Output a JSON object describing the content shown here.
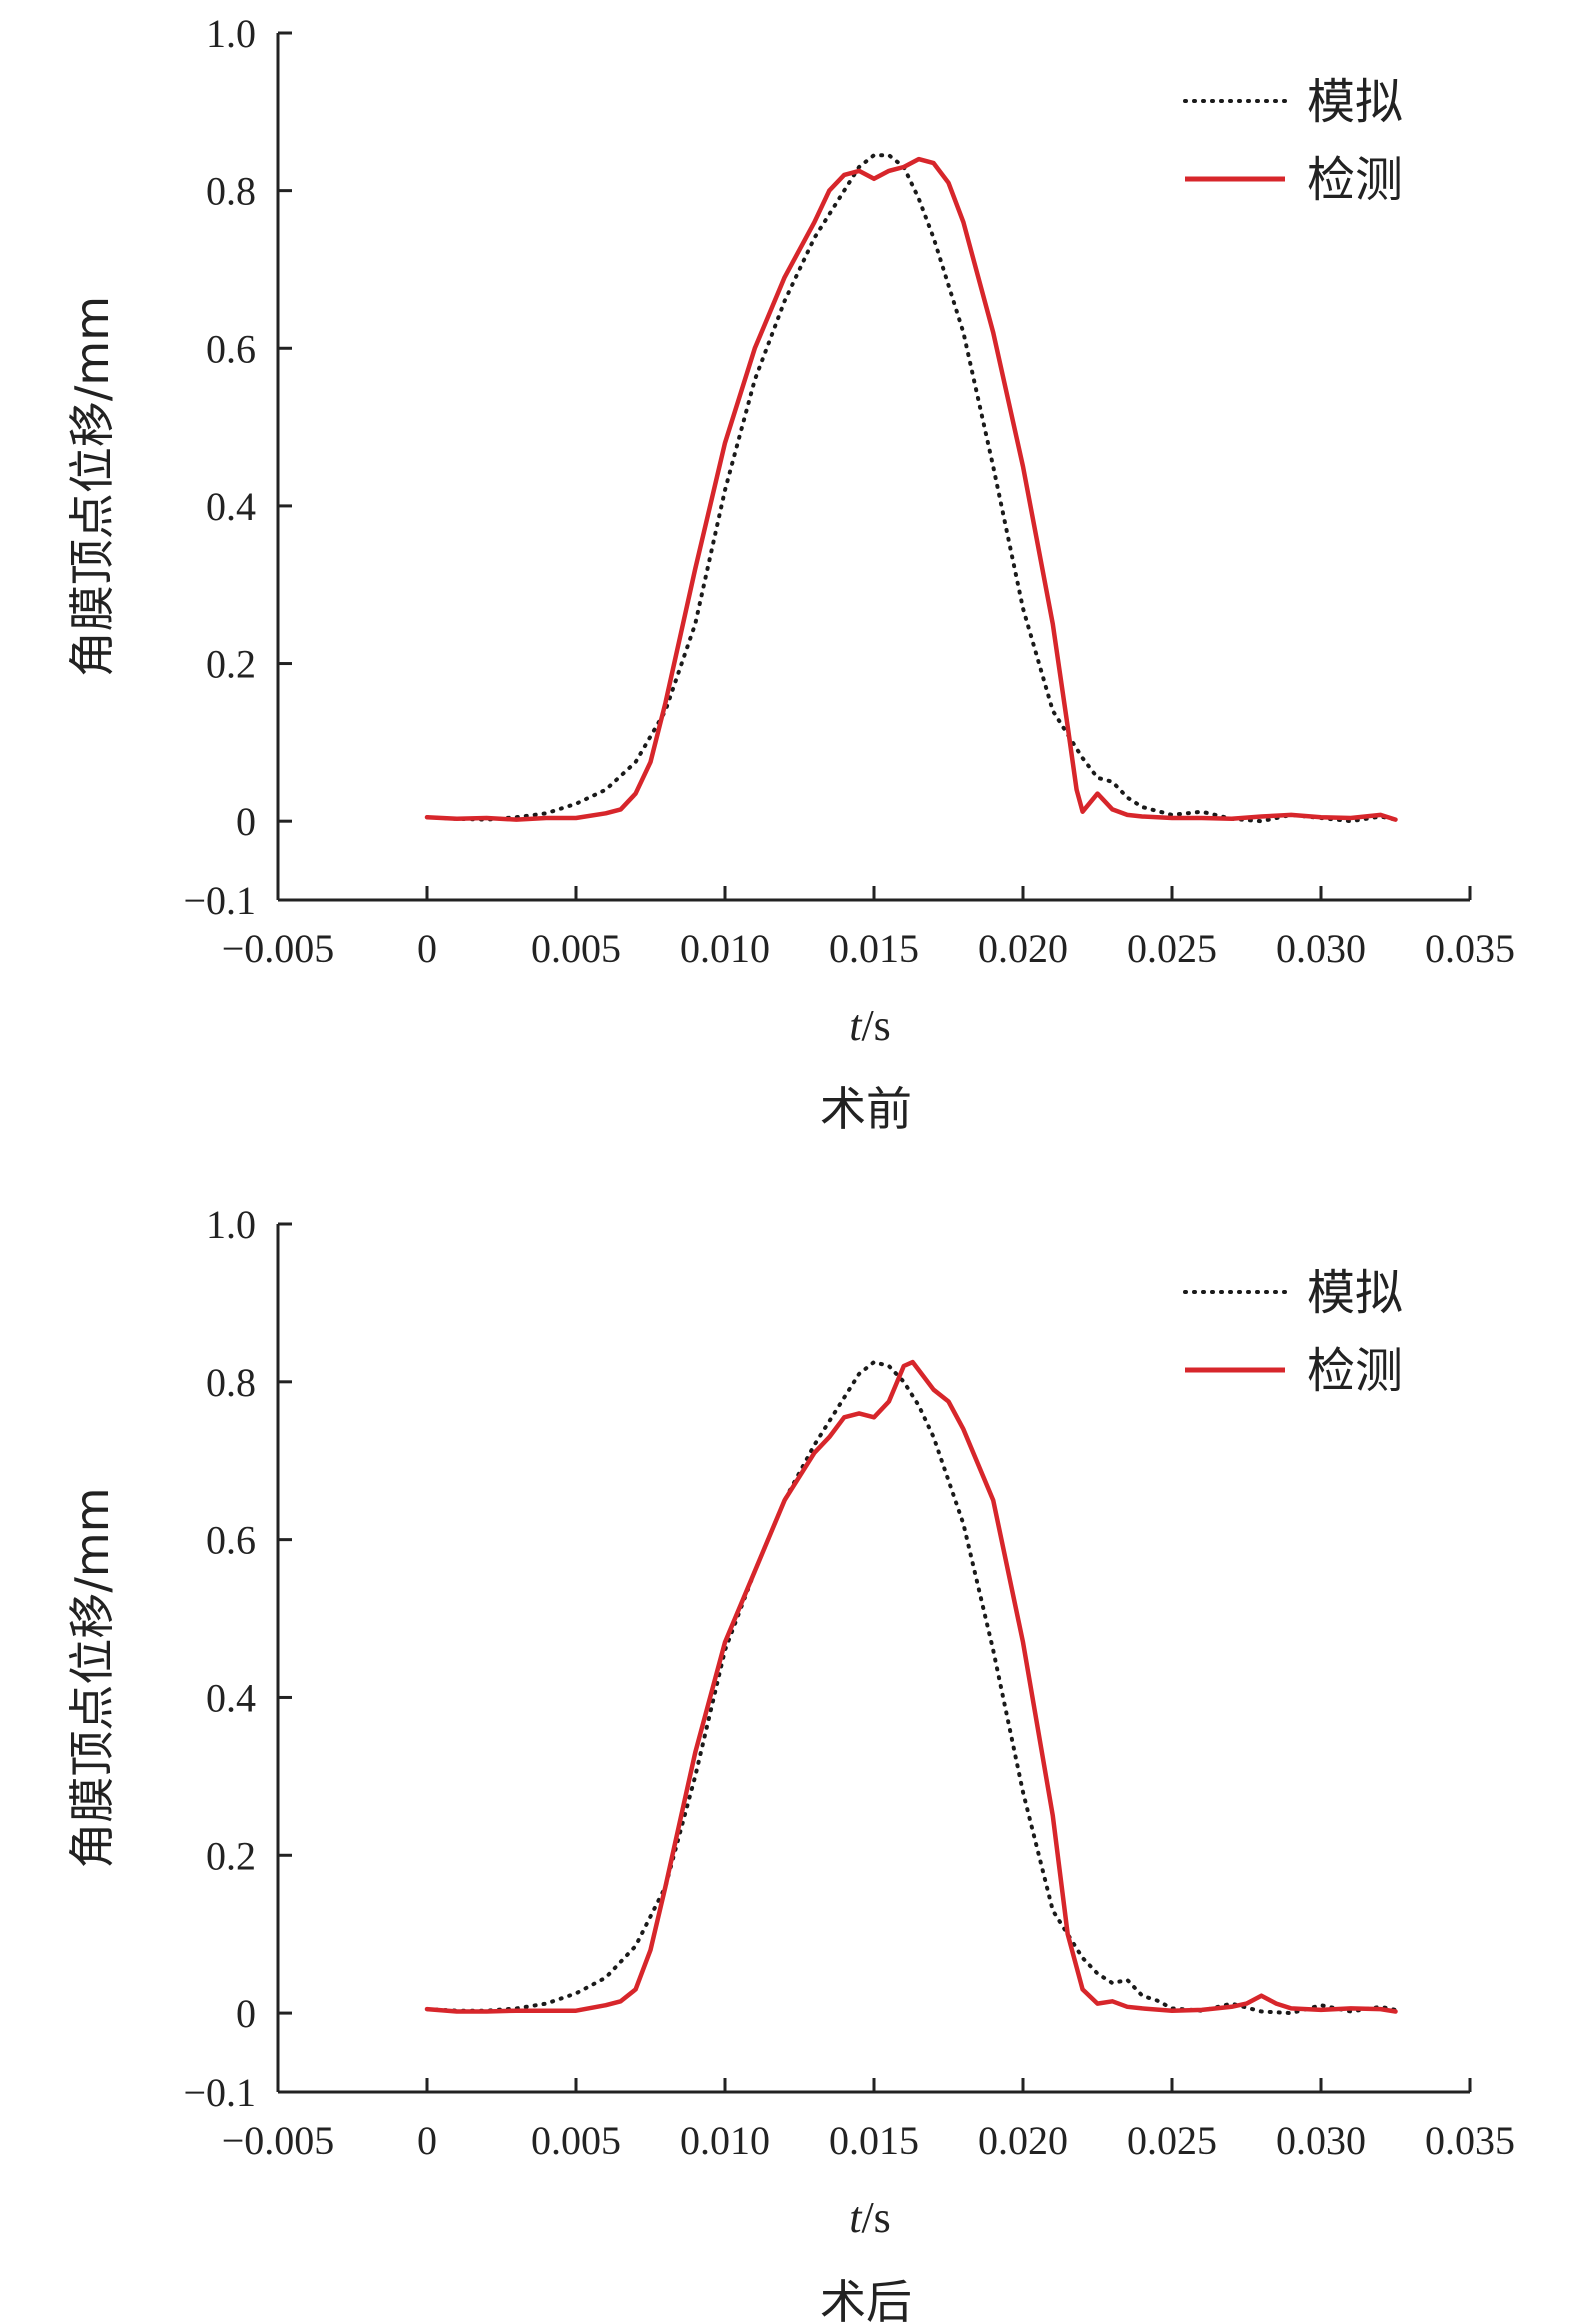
{
  "chart_data": [
    {
      "type": "line",
      "caption": "术前",
      "xlabel": "t/s",
      "ylabel": "角膜顶点位移/mm",
      "xlim": [
        -0.005,
        0.035
      ],
      "ylim": [
        -0.1,
        1.0
      ],
      "xticks": [
        -0.005,
        0,
        0.005,
        0.01,
        0.015,
        0.02,
        0.025,
        0.03,
        0.035
      ],
      "xtick_labels": [
        "−0.005",
        "0",
        "0.005",
        "0.010",
        "0.015",
        "0.020",
        "0.025",
        "0.030",
        "0.035"
      ],
      "yticks": [
        1.0,
        0.8,
        0.6,
        0.4,
        0.2,
        0,
        -0.1
      ],
      "ytick_labels": [
        "1.0",
        "0.8",
        "0.6",
        "0.4",
        "0.2",
        "0",
        "−0.1"
      ],
      "grid": false,
      "legend_position": "top-right",
      "series": [
        {
          "name": "模拟",
          "style": "dotted",
          "color": "#1a1a1a",
          "points": [
            [
              0,
              0.005
            ],
            [
              0.001,
              0.003
            ],
            [
              0.002,
              0.002
            ],
            [
              0.003,
              0.005
            ],
            [
              0.004,
              0.01
            ],
            [
              0.005,
              0.022
            ],
            [
              0.006,
              0.04
            ],
            [
              0.007,
              0.075
            ],
            [
              0.008,
              0.14
            ],
            [
              0.009,
              0.25
            ],
            [
              0.01,
              0.42
            ],
            [
              0.011,
              0.56
            ],
            [
              0.012,
              0.66
            ],
            [
              0.013,
              0.74
            ],
            [
              0.014,
              0.8
            ],
            [
              0.0145,
              0.83
            ],
            [
              0.015,
              0.845
            ],
            [
              0.0155,
              0.845
            ],
            [
              0.016,
              0.83
            ],
            [
              0.0165,
              0.79
            ],
            [
              0.017,
              0.74
            ],
            [
              0.018,
              0.62
            ],
            [
              0.019,
              0.45
            ],
            [
              0.02,
              0.27
            ],
            [
              0.021,
              0.14
            ],
            [
              0.022,
              0.08
            ],
            [
              0.0225,
              0.055
            ],
            [
              0.023,
              0.05
            ],
            [
              0.0235,
              0.03
            ],
            [
              0.024,
              0.018
            ],
            [
              0.025,
              0.008
            ],
            [
              0.026,
              0.012
            ],
            [
              0.027,
              0.003
            ],
            [
              0.028,
              0.0
            ],
            [
              0.029,
              0.008
            ],
            [
              0.03,
              0.004
            ],
            [
              0.031,
              0.0
            ],
            [
              0.032,
              0.006
            ],
            [
              0.0325,
              0.002
            ]
          ]
        },
        {
          "name": "检测",
          "style": "solid",
          "color": "#d7262b",
          "points": [
            [
              0,
              0.005
            ],
            [
              0.001,
              0.003
            ],
            [
              0.002,
              0.004
            ],
            [
              0.003,
              0.002
            ],
            [
              0.004,
              0.004
            ],
            [
              0.005,
              0.004
            ],
            [
              0.006,
              0.01
            ],
            [
              0.0065,
              0.015
            ],
            [
              0.007,
              0.035
            ],
            [
              0.0075,
              0.075
            ],
            [
              0.008,
              0.15
            ],
            [
              0.009,
              0.32
            ],
            [
              0.01,
              0.48
            ],
            [
              0.011,
              0.6
            ],
            [
              0.012,
              0.69
            ],
            [
              0.013,
              0.76
            ],
            [
              0.0135,
              0.8
            ],
            [
              0.014,
              0.82
            ],
            [
              0.0145,
              0.825
            ],
            [
              0.015,
              0.815
            ],
            [
              0.0155,
              0.825
            ],
            [
              0.016,
              0.83
            ],
            [
              0.0165,
              0.84
            ],
            [
              0.017,
              0.835
            ],
            [
              0.0175,
              0.81
            ],
            [
              0.018,
              0.76
            ],
            [
              0.019,
              0.62
            ],
            [
              0.02,
              0.45
            ],
            [
              0.021,
              0.25
            ],
            [
              0.0215,
              0.12
            ],
            [
              0.0218,
              0.04
            ],
            [
              0.022,
              0.012
            ],
            [
              0.0225,
              0.035
            ],
            [
              0.023,
              0.015
            ],
            [
              0.0235,
              0.008
            ],
            [
              0.024,
              0.006
            ],
            [
              0.025,
              0.004
            ],
            [
              0.026,
              0.004
            ],
            [
              0.027,
              0.003
            ],
            [
              0.028,
              0.006
            ],
            [
              0.029,
              0.008
            ],
            [
              0.03,
              0.005
            ],
            [
              0.031,
              0.004
            ],
            [
              0.032,
              0.008
            ],
            [
              0.0325,
              0.002
            ]
          ]
        }
      ]
    },
    {
      "type": "line",
      "caption": "术后",
      "xlabel": "t/s",
      "ylabel": "角膜顶点位移/mm",
      "xlim": [
        -0.005,
        0.035
      ],
      "ylim": [
        -0.1,
        1.0
      ],
      "xticks": [
        -0.005,
        0,
        0.005,
        0.01,
        0.015,
        0.02,
        0.025,
        0.03,
        0.035
      ],
      "xtick_labels": [
        "−0.005",
        "0",
        "0.005",
        "0.010",
        "0.015",
        "0.020",
        "0.025",
        "0.030",
        "0.035"
      ],
      "yticks": [
        1.0,
        0.8,
        0.6,
        0.4,
        0.2,
        0,
        -0.1
      ],
      "ytick_labels": [
        "1.0",
        "0.8",
        "0.6",
        "0.4",
        "0.2",
        "0",
        "−0.1"
      ],
      "grid": false,
      "legend_position": "top-right",
      "series": [
        {
          "name": "模拟",
          "style": "dotted",
          "color": "#1a1a1a",
          "points": [
            [
              0,
              0.005
            ],
            [
              0.001,
              0.003
            ],
            [
              0.002,
              0.003
            ],
            [
              0.003,
              0.006
            ],
            [
              0.004,
              0.012
            ],
            [
              0.005,
              0.025
            ],
            [
              0.006,
              0.045
            ],
            [
              0.007,
              0.085
            ],
            [
              0.008,
              0.16
            ],
            [
              0.009,
              0.3
            ],
            [
              0.01,
              0.46
            ],
            [
              0.011,
              0.56
            ],
            [
              0.012,
              0.65
            ],
            [
              0.013,
              0.72
            ],
            [
              0.014,
              0.78
            ],
            [
              0.0145,
              0.81
            ],
            [
              0.015,
              0.825
            ],
            [
              0.0155,
              0.82
            ],
            [
              0.016,
              0.8
            ],
            [
              0.0165,
              0.77
            ],
            [
              0.017,
              0.73
            ],
            [
              0.018,
              0.62
            ],
            [
              0.019,
              0.46
            ],
            [
              0.02,
              0.28
            ],
            [
              0.021,
              0.13
            ],
            [
              0.022,
              0.07
            ],
            [
              0.0225,
              0.05
            ],
            [
              0.023,
              0.038
            ],
            [
              0.0235,
              0.042
            ],
            [
              0.024,
              0.022
            ],
            [
              0.0245,
              0.016
            ],
            [
              0.025,
              0.006
            ],
            [
              0.026,
              0.003
            ],
            [
              0.027,
              0.012
            ],
            [
              0.028,
              0.002
            ],
            [
              0.029,
              0.0
            ],
            [
              0.03,
              0.01
            ],
            [
              0.031,
              0.002
            ],
            [
              0.032,
              0.008
            ],
            [
              0.0325,
              0.004
            ]
          ]
        },
        {
          "name": "检测",
          "style": "solid",
          "color": "#d7262b",
          "points": [
            [
              0,
              0.005
            ],
            [
              0.001,
              0.002
            ],
            [
              0.002,
              0.002
            ],
            [
              0.003,
              0.003
            ],
            [
              0.004,
              0.003
            ],
            [
              0.005,
              0.003
            ],
            [
              0.006,
              0.01
            ],
            [
              0.0065,
              0.015
            ],
            [
              0.007,
              0.03
            ],
            [
              0.0075,
              0.08
            ],
            [
              0.008,
              0.16
            ],
            [
              0.009,
              0.33
            ],
            [
              0.01,
              0.47
            ],
            [
              0.011,
              0.56
            ],
            [
              0.012,
              0.65
            ],
            [
              0.013,
              0.71
            ],
            [
              0.0135,
              0.73
            ],
            [
              0.014,
              0.755
            ],
            [
              0.0145,
              0.76
            ],
            [
              0.015,
              0.755
            ],
            [
              0.0155,
              0.775
            ],
            [
              0.016,
              0.82
            ],
            [
              0.0163,
              0.825
            ],
            [
              0.0165,
              0.815
            ],
            [
              0.017,
              0.79
            ],
            [
              0.0175,
              0.775
            ],
            [
              0.018,
              0.74
            ],
            [
              0.019,
              0.65
            ],
            [
              0.02,
              0.47
            ],
            [
              0.021,
              0.25
            ],
            [
              0.0215,
              0.1
            ],
            [
              0.022,
              0.03
            ],
            [
              0.0225,
              0.012
            ],
            [
              0.023,
              0.015
            ],
            [
              0.0235,
              0.008
            ],
            [
              0.024,
              0.006
            ],
            [
              0.025,
              0.003
            ],
            [
              0.026,
              0.004
            ],
            [
              0.027,
              0.008
            ],
            [
              0.0275,
              0.012
            ],
            [
              0.028,
              0.022
            ],
            [
              0.0285,
              0.012
            ],
            [
              0.029,
              0.006
            ],
            [
              0.03,
              0.004
            ],
            [
              0.031,
              0.006
            ],
            [
              0.032,
              0.005
            ],
            [
              0.0325,
              0.002
            ]
          ]
        }
      ]
    }
  ]
}
